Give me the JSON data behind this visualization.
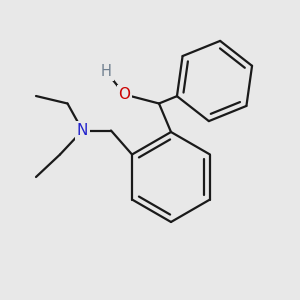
{
  "background_color": "#e8e8e8",
  "bond_color": "#1a1a1a",
  "o_color": "#cc0000",
  "n_color": "#2222cc",
  "h_color": "#708090",
  "line_width": 1.6,
  "fig_size": [
    3.0,
    3.0
  ],
  "dpi": 100,
  "xlim": [
    0,
    10
  ],
  "ylim": [
    0,
    10
  ]
}
